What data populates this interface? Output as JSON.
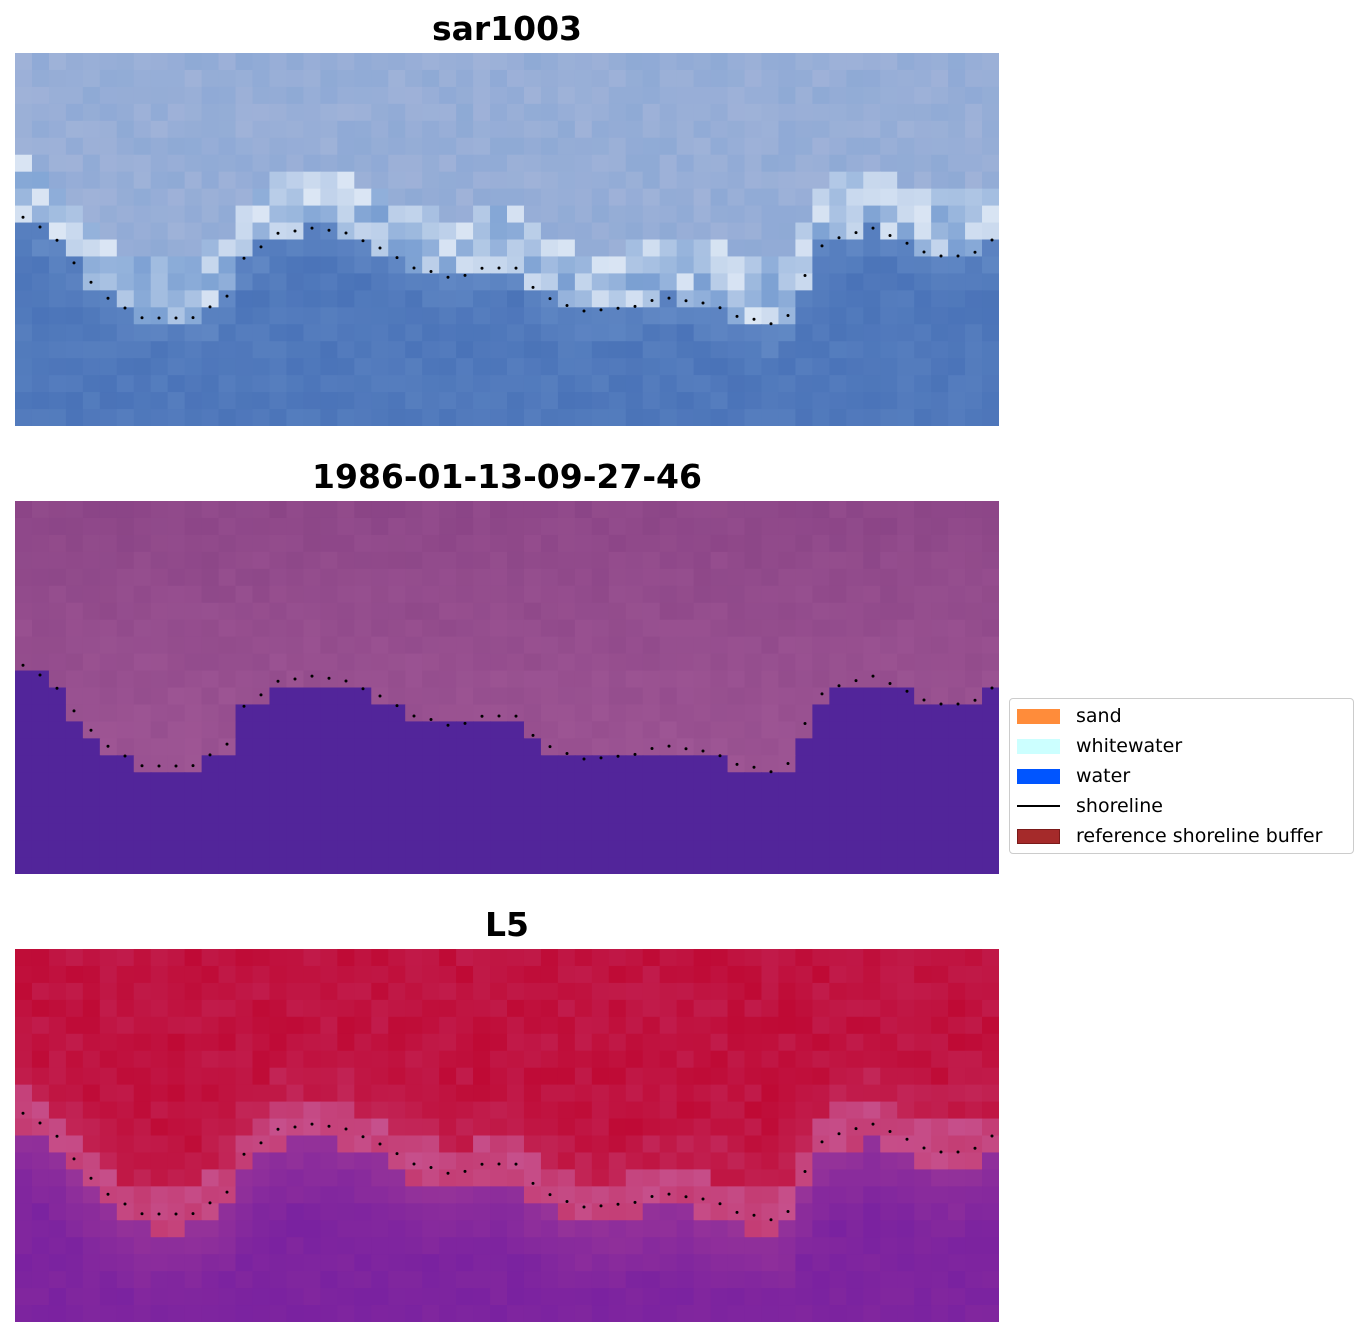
{
  "panels": [
    {
      "title": "sar1003",
      "colors": {
        "top": "#9fb2d8",
        "bright": "#e6eef8",
        "mid": "#7a9fd2",
        "bottom": "#4a73b8"
      }
    },
    {
      "title": "1986-01-13-09-27-46",
      "colors": {
        "top": "#8a4486",
        "mid": "#a35a98",
        "water": "#52259a"
      }
    },
    {
      "title": "L5",
      "colors": {
        "top": "#bf0a35",
        "edge": "#c6508c",
        "water": "#7a22a0"
      }
    }
  ],
  "legend": {
    "items": [
      {
        "label": "sand",
        "type": "patch",
        "color": "#ff8c3a"
      },
      {
        "label": "whitewater",
        "type": "patch",
        "color": "#ccffff"
      },
      {
        "label": "water",
        "type": "patch",
        "color": "#0055ff"
      },
      {
        "label": "shoreline",
        "type": "line",
        "color": "#000000"
      },
      {
        "label": "reference shoreline buffer",
        "type": "patch",
        "color": "#a52a2a"
      }
    ]
  }
}
